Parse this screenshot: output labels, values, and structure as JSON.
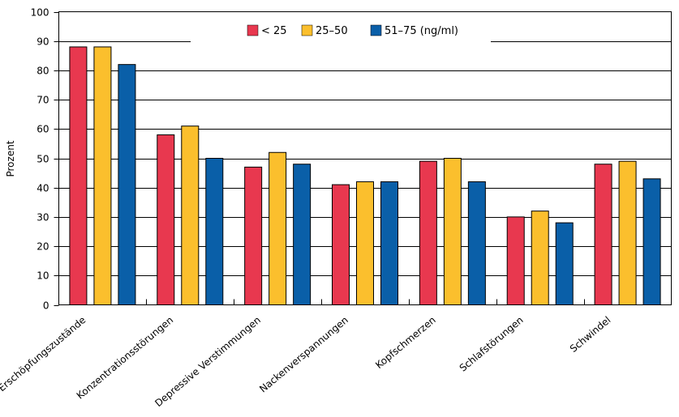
{
  "chart_data": {
    "type": "bar",
    "ylabel": "Prozent",
    "ylim": [
      0,
      100
    ],
    "yticks": [
      0,
      10,
      20,
      30,
      40,
      50,
      60,
      70,
      80,
      90,
      100
    ],
    "grid": true,
    "legend_position": "top-center",
    "categories": [
      "Erschöpfungszustände",
      "Konzentrationsstörungen",
      "Depressive Verstimmungen",
      "Nackenverspannungen",
      "Kopfschmerzen",
      "Schlafstörungen",
      "Schwindel"
    ],
    "series": [
      {
        "name": "< 25",
        "color": "#e8384f",
        "values": [
          88,
          58,
          47,
          41,
          49,
          30,
          48
        ]
      },
      {
        "name": "25–50",
        "color": "#fbbf2d",
        "values": [
          88,
          61,
          52,
          42,
          50,
          32,
          49
        ]
      },
      {
        "name": "51–75 (ng/ml)",
        "color": "#0a5fa8",
        "values": [
          82,
          50,
          48,
          42,
          42,
          28,
          43
        ]
      }
    ]
  }
}
